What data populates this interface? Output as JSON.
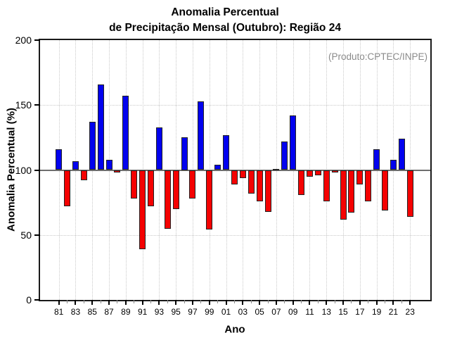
{
  "title": {
    "line1": "Anomalia Percentual",
    "line2": "de Precipitação Mensal (Outubro): Região 24"
  },
  "annotation": "(Produto:CPTEC/INPE)",
  "colors": {
    "positive_bar": "#0202ee",
    "negative_bar": "#f40202",
    "bar_border": "#222222",
    "baseline": "#6e6e6e",
    "grid": "#c9c9c9",
    "axis": "#1a1a1a",
    "annotation_text": "#8a8a8a",
    "minor_tick": "#8a8a8a"
  },
  "chart_data": {
    "type": "bar",
    "title": "Anomalia Percentual de Precipitação Mensal (Outubro): Região 24",
    "xlabel": "Ano",
    "ylabel": "Anomalia Percentual (%)",
    "ylim": [
      0,
      200
    ],
    "baseline_value": 100,
    "grid": "dotted at yticks 50 and 150 and at labeled years",
    "legend_position": "none",
    "yticks": [
      0,
      50,
      100,
      150,
      200
    ],
    "xtick_labels": [
      "81",
      "83",
      "85",
      "87",
      "89",
      "91",
      "93",
      "95",
      "97",
      "99",
      "01",
      "03",
      "05",
      "07",
      "09",
      "11",
      "13",
      "15",
      "17",
      "19",
      "21",
      "23"
    ],
    "categories": [
      "81",
      "82",
      "83",
      "84",
      "85",
      "86",
      "87",
      "88",
      "89",
      "90",
      "91",
      "92",
      "93",
      "94",
      "95",
      "96",
      "97",
      "98",
      "99",
      "00",
      "01",
      "02",
      "03",
      "04",
      "05",
      "06",
      "07",
      "08",
      "09",
      "10",
      "11",
      "12",
      "13",
      "14",
      "15",
      "16",
      "17",
      "18",
      "19",
      "20",
      "21",
      "22",
      "23"
    ],
    "values": [
      116,
      72,
      107,
      92,
      137,
      166,
      108,
      98,
      157,
      78,
      39,
      72,
      133,
      55,
      70,
      125,
      78,
      153,
      54,
      104,
      127,
      89,
      94,
      82,
      76,
      68,
      101,
      122,
      142,
      81,
      95,
      96,
      76,
      98,
      62,
      67,
      89,
      76,
      116,
      69,
      108,
      124,
      64
    ],
    "color_rule": "blue above 100, red below 100"
  }
}
